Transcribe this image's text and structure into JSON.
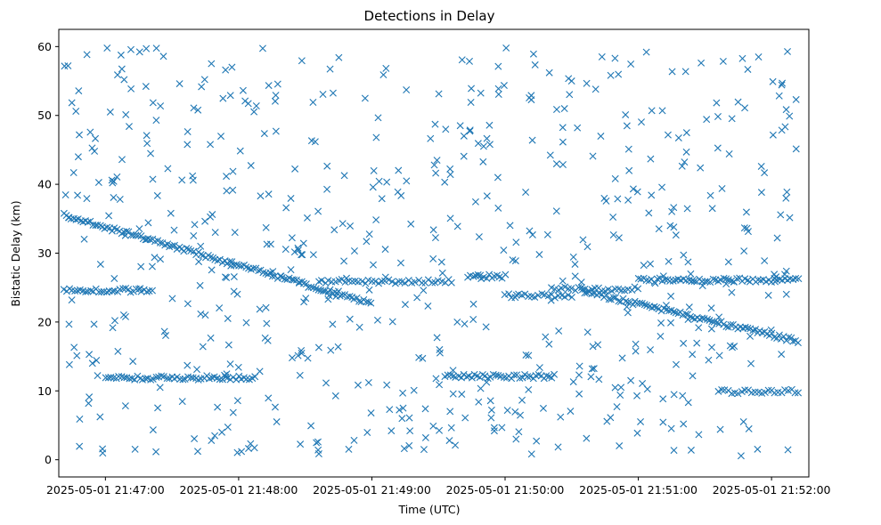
{
  "chart_data": {
    "type": "scatter",
    "title": "Detections in Delay",
    "xlabel": "Time (UTC)",
    "ylabel": "Bistatic Delay (km)",
    "marker": "x",
    "color": "#1f77b4",
    "xlim_minutes": [
      -0.35,
      5.28
    ],
    "ylim": [
      -2.5,
      62.5
    ],
    "x_ticks": [
      {
        "minute": 0,
        "label": "2025-05-01 21:47:00"
      },
      {
        "minute": 1,
        "label": "2025-05-01 21:48:00"
      },
      {
        "minute": 2,
        "label": "2025-05-01 21:49:00"
      },
      {
        "minute": 3,
        "label": "2025-05-01 21:50:00"
      },
      {
        "minute": 4,
        "label": "2025-05-01 21:51:00"
      },
      {
        "minute": 5,
        "label": "2025-05-01 21:52:00"
      }
    ],
    "y_ticks": [
      {
        "value": 0,
        "label": "0"
      },
      {
        "value": 10,
        "label": "10"
      },
      {
        "value": 20,
        "label": "20"
      },
      {
        "value": 30,
        "label": "30"
      },
      {
        "value": 40,
        "label": "40"
      },
      {
        "value": 50,
        "label": "50"
      },
      {
        "value": 60,
        "label": "60"
      }
    ],
    "tracks": [
      {
        "name": "descending track A",
        "x_start": -0.31,
        "y_start": 35.5,
        "x_end": 1.98,
        "y_end": 22.8,
        "step": 0.018
      },
      {
        "name": "descending track B",
        "x_start": 3.58,
        "y_start": 24.5,
        "x_end": 5.2,
        "y_end": 17.2,
        "step": 0.018
      },
      {
        "name": "band ~25 km (start)",
        "x_start": -0.31,
        "x_end": 0.35,
        "y": 24.6,
        "step": 0.02
      },
      {
        "name": "band ~12 km (start)",
        "x_start": 0.0,
        "x_end": 1.12,
        "y": 11.9,
        "step": 0.02
      },
      {
        "name": "band ~26 km (middle)",
        "x_start": 1.6,
        "x_end": 2.62,
        "y": 25.9,
        "step": 0.025
      },
      {
        "name": "band ~12 km (middle)",
        "x_start": 2.55,
        "x_end": 3.38,
        "y": 12.1,
        "step": 0.02
      },
      {
        "name": "band ~26.5 km (middle)",
        "x_start": 2.72,
        "x_end": 3.0,
        "y": 26.6,
        "step": 0.02
      },
      {
        "name": "band ~24 km (middle)",
        "x_start": 3.0,
        "x_end": 3.52,
        "y": 23.8,
        "step": 0.025
      },
      {
        "name": "band ~25 km (late)",
        "x_start": 3.35,
        "x_end": 4.0,
        "y": 24.8,
        "step": 0.025
      },
      {
        "name": "band ~26 km (end)",
        "x_start": 4.0,
        "x_end": 5.2,
        "y": 26.1,
        "step": 0.02
      },
      {
        "name": "band ~10 km (end)",
        "x_start": 4.6,
        "x_end": 5.2,
        "y": 9.9,
        "step": 0.025
      }
    ],
    "clutter": {
      "count": 620,
      "x_range": [
        -0.31,
        5.2
      ],
      "y_range": [
        0.5,
        60
      ],
      "note": "scattered detections across full range"
    }
  }
}
